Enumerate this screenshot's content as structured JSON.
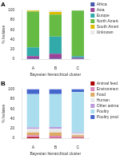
{
  "chart_data": [
    {
      "type": "bar",
      "stacked": true,
      "title": "A",
      "categories": [
        "A",
        "B",
        "C"
      ],
      "series": [
        {
          "name": "Africa",
          "color": "#4455aa",
          "values": [
            1,
            1,
            1
          ]
        },
        {
          "name": "Asia",
          "color": "#994499",
          "values": [
            5,
            10,
            2
          ]
        },
        {
          "name": "Europe",
          "color": "#33aaaa",
          "values": [
            18,
            35,
            3
          ]
        },
        {
          "name": "North America",
          "color": "#66bb44",
          "values": [
            73,
            45,
            93
          ]
        },
        {
          "name": "South America",
          "color": "#ddbb00",
          "values": [
            2,
            5,
            0
          ]
        },
        {
          "name": "Unknown",
          "color": "#e8e8e8",
          "values": [
            1,
            4,
            1
          ]
        }
      ],
      "xlabel": "Bayesian hierarchical cluster",
      "ylabel": "% Isolates",
      "ylim": [
        0,
        100
      ],
      "yticks": [
        0,
        20,
        40,
        60,
        80,
        100
      ],
      "grid": false,
      "legend": "right"
    },
    {
      "type": "bar",
      "stacked": true,
      "title": "B",
      "categories": [
        "A",
        "B",
        "C"
      ],
      "series": [
        {
          "name": "Animal feed",
          "color": "#aa0000",
          "values": [
            2,
            1,
            1
          ]
        },
        {
          "name": "Environmental",
          "color": "#dd88bb",
          "values": [
            4,
            4,
            2
          ]
        },
        {
          "name": "Food",
          "color": "#ddaa66",
          "values": [
            6,
            7,
            3
          ]
        },
        {
          "name": "Human",
          "color": "#e8e8e8",
          "values": [
            7,
            7,
            4
          ]
        },
        {
          "name": "Other animals",
          "color": "#bb99dd",
          "values": [
            3,
            4,
            2
          ]
        },
        {
          "name": "Poultry",
          "color": "#aaddee",
          "values": [
            68,
            67,
            82
          ]
        },
        {
          "name": "Poultry products",
          "color": "#4466cc",
          "values": [
            10,
            10,
            6
          ]
        }
      ],
      "xlabel": "Bayesian hierarchical cluster",
      "ylabel": "% Isolates",
      "ylim": [
        0,
        100
      ],
      "yticks": [
        0,
        20,
        40,
        60,
        80,
        100
      ],
      "grid": false,
      "legend": "right"
    }
  ]
}
